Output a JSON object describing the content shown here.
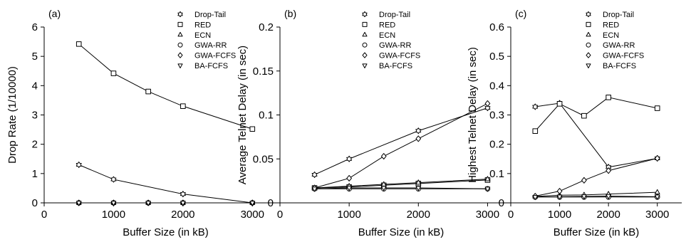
{
  "chart_data": [
    {
      "type": "line",
      "panel": "(a)",
      "xlabel": "Buffer Size (in kB)",
      "ylabel": "Drop Rate (1/10000)",
      "xlim": [
        0,
        3500
      ],
      "ylim": [
        0,
        6
      ],
      "xticks": [
        "0",
        "1000",
        "2000",
        "3000"
      ],
      "yticks": [
        "0",
        "1",
        "2",
        "3",
        "4",
        "5",
        "6"
      ],
      "legend_position": "top-right",
      "grid": false,
      "series": [
        {
          "name": "Drop-Tail",
          "marker": "star",
          "points": [
            [
              500,
              1.3
            ],
            [
              1000,
              0.8
            ],
            [
              2000,
              0.3
            ],
            [
              3000,
              0.0
            ]
          ]
        },
        {
          "name": "RED",
          "marker": "square",
          "points": [
            [
              500,
              5.42
            ],
            [
              1000,
              4.42
            ],
            [
              1500,
              3.8
            ],
            [
              2000,
              3.3
            ],
            [
              3000,
              2.52
            ]
          ]
        },
        {
          "name": "ECN",
          "marker": "triangle-up",
          "points": [
            [
              500,
              0.0
            ],
            [
              1000,
              0.0
            ],
            [
              1500,
              0.0
            ],
            [
              2000,
              0.0
            ],
            [
              3000,
              0.0
            ]
          ]
        },
        {
          "name": "GWA-RR",
          "marker": "circle",
          "points": [
            [
              500,
              0.0
            ],
            [
              1000,
              0.0
            ],
            [
              1500,
              0.0
            ],
            [
              2000,
              0.0
            ],
            [
              3000,
              0.0
            ]
          ]
        },
        {
          "name": "GWA-FCFS",
          "marker": "diamond",
          "points": [
            [
              500,
              0.0
            ],
            [
              1000,
              0.0
            ],
            [
              1500,
              0.0
            ],
            [
              2000,
              0.0
            ],
            [
              3000,
              0.0
            ]
          ]
        },
        {
          "name": "BA-FCFS",
          "marker": "triangle-down",
          "points": [
            [
              500,
              0.0
            ],
            [
              1000,
              0.0
            ],
            [
              1500,
              0.0
            ],
            [
              2000,
              0.0
            ],
            [
              3000,
              0.0
            ]
          ]
        }
      ]
    },
    {
      "type": "line",
      "panel": "(b)",
      "xlabel": "Buffer Size (in kB)",
      "ylabel": "Average Telnet Delay (in sec)",
      "xlim": [
        0,
        3500
      ],
      "ylim": [
        0,
        0.2
      ],
      "xticks": [
        "0",
        "1000",
        "2000",
        "3000"
      ],
      "yticks": [
        "0",
        "0.05",
        "0.1",
        "0.15",
        "0.2"
      ],
      "legend_position": "top-right",
      "grid": false,
      "series": [
        {
          "name": "Drop-Tail",
          "marker": "star",
          "points": [
            [
              500,
              0.032
            ],
            [
              1000,
              0.05
            ],
            [
              2000,
              0.082
            ],
            [
              3000,
              0.108
            ]
          ]
        },
        {
          "name": "RED",
          "marker": "square",
          "points": [
            [
              500,
              0.017
            ],
            [
              1000,
              0.018
            ],
            [
              1500,
              0.02
            ],
            [
              2000,
              0.022
            ],
            [
              3000,
              0.026
            ]
          ]
        },
        {
          "name": "ECN",
          "marker": "triangle-up",
          "points": [
            [
              500,
              0.017
            ],
            [
              1000,
              0.019
            ],
            [
              1500,
              0.021
            ],
            [
              2000,
              0.023
            ],
            [
              3000,
              0.027
            ]
          ]
        },
        {
          "name": "GWA-RR",
          "marker": "circle",
          "points": [
            [
              500,
              0.016
            ],
            [
              1000,
              0.016
            ],
            [
              1500,
              0.016
            ],
            [
              2000,
              0.016
            ],
            [
              3000,
              0.016
            ]
          ]
        },
        {
          "name": "GWA-FCFS",
          "marker": "diamond",
          "points": [
            [
              500,
              0.017
            ],
            [
              1000,
              0.028
            ],
            [
              1500,
              0.053
            ],
            [
              2000,
              0.073
            ],
            [
              3000,
              0.113
            ]
          ]
        },
        {
          "name": "BA-FCFS",
          "marker": "triangle-down",
          "points": [
            [
              500,
              0.016
            ],
            [
              1000,
              0.017
            ],
            [
              1500,
              0.017
            ],
            [
              2000,
              0.017
            ],
            [
              3000,
              0.016
            ]
          ]
        }
      ]
    },
    {
      "type": "line",
      "panel": "(c)",
      "xlabel": "Buffer Size (in kB)",
      "ylabel": "Highest Telnet Delay (in sec)",
      "xlim": [
        0,
        3500
      ],
      "ylim": [
        0,
        0.6
      ],
      "xticks": [
        "0",
        "1000",
        "2000",
        "3000"
      ],
      "yticks": [
        "0",
        "0.1",
        "0.2",
        "0.3",
        "0.4",
        "0.5",
        "0.6"
      ],
      "legend_position": "top-right",
      "grid": false,
      "series": [
        {
          "name": "Drop-Tail",
          "marker": "star",
          "points": [
            [
              500,
              0.328
            ],
            [
              1000,
              0.34
            ],
            [
              2000,
              0.122
            ],
            [
              3000,
              0.152
            ]
          ]
        },
        {
          "name": "RED",
          "marker": "square",
          "points": [
            [
              500,
              0.245
            ],
            [
              1000,
              0.338
            ],
            [
              1500,
              0.297
            ],
            [
              2000,
              0.36
            ],
            [
              3000,
              0.323
            ]
          ]
        },
        {
          "name": "ECN",
          "marker": "triangle-up",
          "points": [
            [
              500,
              0.022
            ],
            [
              1000,
              0.026
            ],
            [
              1500,
              0.027
            ],
            [
              2000,
              0.03
            ],
            [
              3000,
              0.036
            ]
          ]
        },
        {
          "name": "GWA-RR",
          "marker": "circle",
          "points": [
            [
              500,
              0.02
            ],
            [
              1000,
              0.02
            ],
            [
              1500,
              0.02
            ],
            [
              2000,
              0.02
            ],
            [
              3000,
              0.02
            ]
          ]
        },
        {
          "name": "GWA-FCFS",
          "marker": "diamond",
          "points": [
            [
              500,
              0.023
            ],
            [
              1000,
              0.04
            ],
            [
              1500,
              0.077
            ],
            [
              2000,
              0.11
            ],
            [
              3000,
              0.152
            ]
          ]
        },
        {
          "name": "BA-FCFS",
          "marker": "triangle-down",
          "points": [
            [
              500,
              0.02
            ],
            [
              1000,
              0.021
            ],
            [
              1500,
              0.022
            ],
            [
              2000,
              0.023
            ],
            [
              3000,
              0.021
            ]
          ]
        }
      ]
    }
  ]
}
